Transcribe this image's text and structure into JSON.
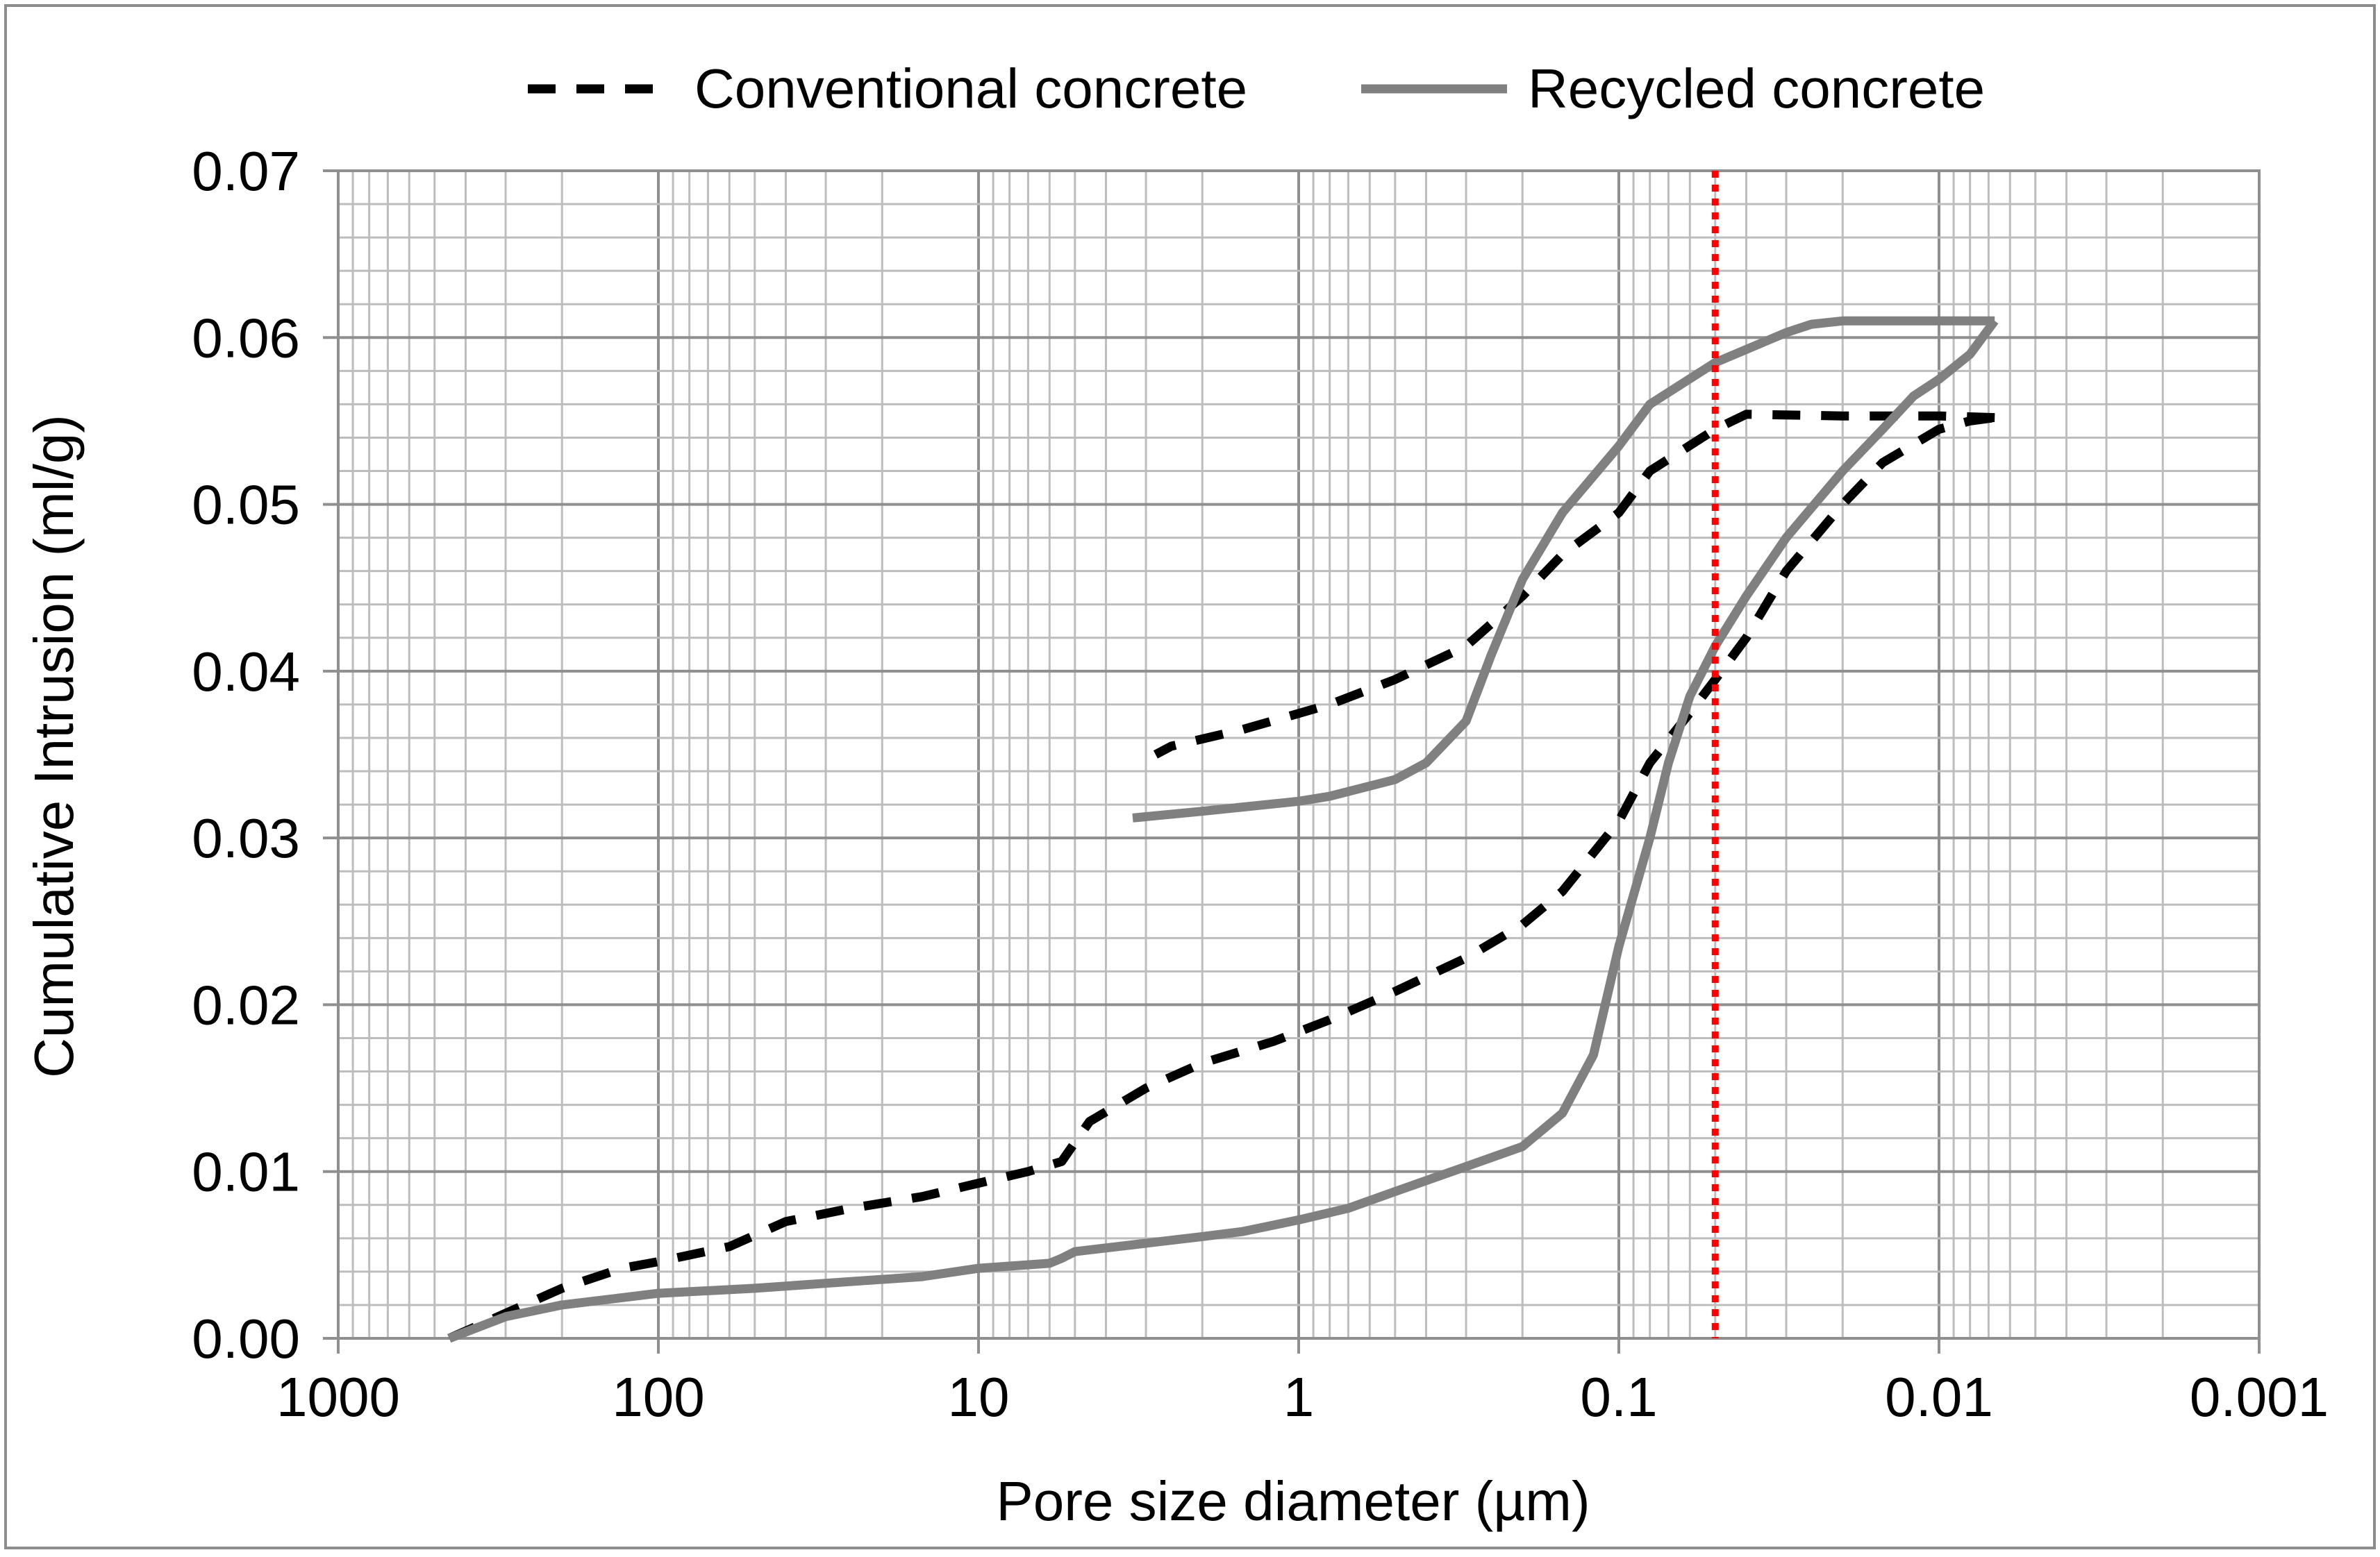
{
  "chart_data": {
    "type": "line",
    "title": "",
    "xlabel": "Pore size diameter (µm)",
    "ylabel": "Cumulative Intrusion (ml/g)",
    "x_scale": "log",
    "x_reversed": true,
    "xlim": [
      1000,
      0.001
    ],
    "ylim": [
      0,
      0.07
    ],
    "grid": true,
    "legend_position": "top",
    "x_ticks": [
      {
        "value": 1000,
        "label": "1000"
      },
      {
        "value": 100,
        "label": "100"
      },
      {
        "value": 10,
        "label": "10"
      },
      {
        "value": 1,
        "label": "1"
      },
      {
        "value": 0.1,
        "label": "0.1"
      },
      {
        "value": 0.01,
        "label": "0.01"
      },
      {
        "value": 0.001,
        "label": "0.001"
      }
    ],
    "y_ticks": [
      {
        "value": 0,
        "label": "0.00"
      },
      {
        "value": 0.01,
        "label": "0.01"
      },
      {
        "value": 0.02,
        "label": "0.02"
      },
      {
        "value": 0.03,
        "label": "0.03"
      },
      {
        "value": 0.04,
        "label": "0.04"
      },
      {
        "value": 0.05,
        "label": "0.05"
      },
      {
        "value": 0.06,
        "label": "0.06"
      },
      {
        "value": 0.07,
        "label": "0.07"
      }
    ],
    "reference_line": {
      "x": 0.05,
      "color": "#ff0000",
      "style": "dotted"
    },
    "series": [
      {
        "name": "Conventional concrete",
        "color": "#000000",
        "style": "dashed",
        "intrusion": [
          [
            450,
            0.0
          ],
          [
            300,
            0.0015
          ],
          [
            200,
            0.003
          ],
          [
            130,
            0.0042
          ],
          [
            100,
            0.0046
          ],
          [
            60,
            0.0055
          ],
          [
            40,
            0.007
          ],
          [
            25,
            0.0078
          ],
          [
            15,
            0.0085
          ],
          [
            10,
            0.0093
          ],
          [
            7,
            0.01
          ],
          [
            5.5,
            0.0106
          ],
          [
            4.5,
            0.013
          ],
          [
            3,
            0.015
          ],
          [
            2,
            0.0165
          ],
          [
            1.2,
            0.0178
          ],
          [
            0.8,
            0.0191
          ],
          [
            0.5,
            0.0208
          ],
          [
            0.3,
            0.0228
          ],
          [
            0.2,
            0.0248
          ],
          [
            0.15,
            0.0268
          ],
          [
            0.1,
            0.031
          ],
          [
            0.08,
            0.0345
          ],
          [
            0.06,
            0.0375
          ],
          [
            0.05,
            0.0395
          ],
          [
            0.04,
            0.042
          ],
          [
            0.03,
            0.046
          ],
          [
            0.02,
            0.05
          ],
          [
            0.015,
            0.0525
          ],
          [
            0.01,
            0.0545
          ],
          [
            0.008,
            0.055
          ],
          [
            0.0067,
            0.0552
          ]
        ],
        "extrusion": [
          [
            0.0067,
            0.0552
          ],
          [
            0.01,
            0.0553
          ],
          [
            0.02,
            0.0553
          ],
          [
            0.04,
            0.0554
          ],
          [
            0.05,
            0.0545
          ],
          [
            0.08,
            0.052
          ],
          [
            0.1,
            0.0495
          ],
          [
            0.15,
            0.047
          ],
          [
            0.2,
            0.0445
          ],
          [
            0.3,
            0.0415
          ],
          [
            0.5,
            0.0395
          ],
          [
            0.8,
            0.038
          ],
          [
            1.5,
            0.0365
          ],
          [
            2.5,
            0.0355
          ],
          [
            2.8,
            0.035
          ]
        ]
      },
      {
        "name": "Recycled concrete",
        "color": "#808080",
        "style": "solid",
        "intrusion": [
          [
            450,
            0.0
          ],
          [
            300,
            0.0013
          ],
          [
            200,
            0.002
          ],
          [
            100,
            0.0027
          ],
          [
            50,
            0.003
          ],
          [
            30,
            0.0033
          ],
          [
            15,
            0.0037
          ],
          [
            10,
            0.0042
          ],
          [
            6,
            0.0045
          ],
          [
            5.5,
            0.0048
          ],
          [
            5,
            0.0052
          ],
          [
            3,
            0.0057
          ],
          [
            2,
            0.0061
          ],
          [
            1.5,
            0.0064
          ],
          [
            1,
            0.0071
          ],
          [
            0.7,
            0.0078
          ],
          [
            0.5,
            0.0088
          ],
          [
            0.3,
            0.0103
          ],
          [
            0.2,
            0.0115
          ],
          [
            0.15,
            0.0135
          ],
          [
            0.12,
            0.017
          ],
          [
            0.1,
            0.0235
          ],
          [
            0.08,
            0.03
          ],
          [
            0.07,
            0.0345
          ],
          [
            0.06,
            0.0385
          ],
          [
            0.05,
            0.0415
          ],
          [
            0.04,
            0.0445
          ],
          [
            0.03,
            0.048
          ],
          [
            0.02,
            0.052
          ],
          [
            0.015,
            0.0545
          ],
          [
            0.012,
            0.0565
          ],
          [
            0.01,
            0.0575
          ],
          [
            0.008,
            0.059
          ],
          [
            0.0067,
            0.061
          ]
        ],
        "extrusion": [
          [
            0.0067,
            0.061
          ],
          [
            0.01,
            0.061
          ],
          [
            0.015,
            0.061
          ],
          [
            0.02,
            0.061
          ],
          [
            0.025,
            0.0608
          ],
          [
            0.03,
            0.0603
          ],
          [
            0.05,
            0.0585
          ],
          [
            0.08,
            0.056
          ],
          [
            0.1,
            0.0535
          ],
          [
            0.15,
            0.0495
          ],
          [
            0.2,
            0.0455
          ],
          [
            0.25,
            0.041
          ],
          [
            0.3,
            0.037
          ],
          [
            0.4,
            0.0345
          ],
          [
            0.5,
            0.0335
          ],
          [
            0.8,
            0.0325
          ],
          [
            1,
            0.0322
          ],
          [
            2,
            0.0316
          ],
          [
            3.3,
            0.0312
          ]
        ]
      }
    ]
  }
}
